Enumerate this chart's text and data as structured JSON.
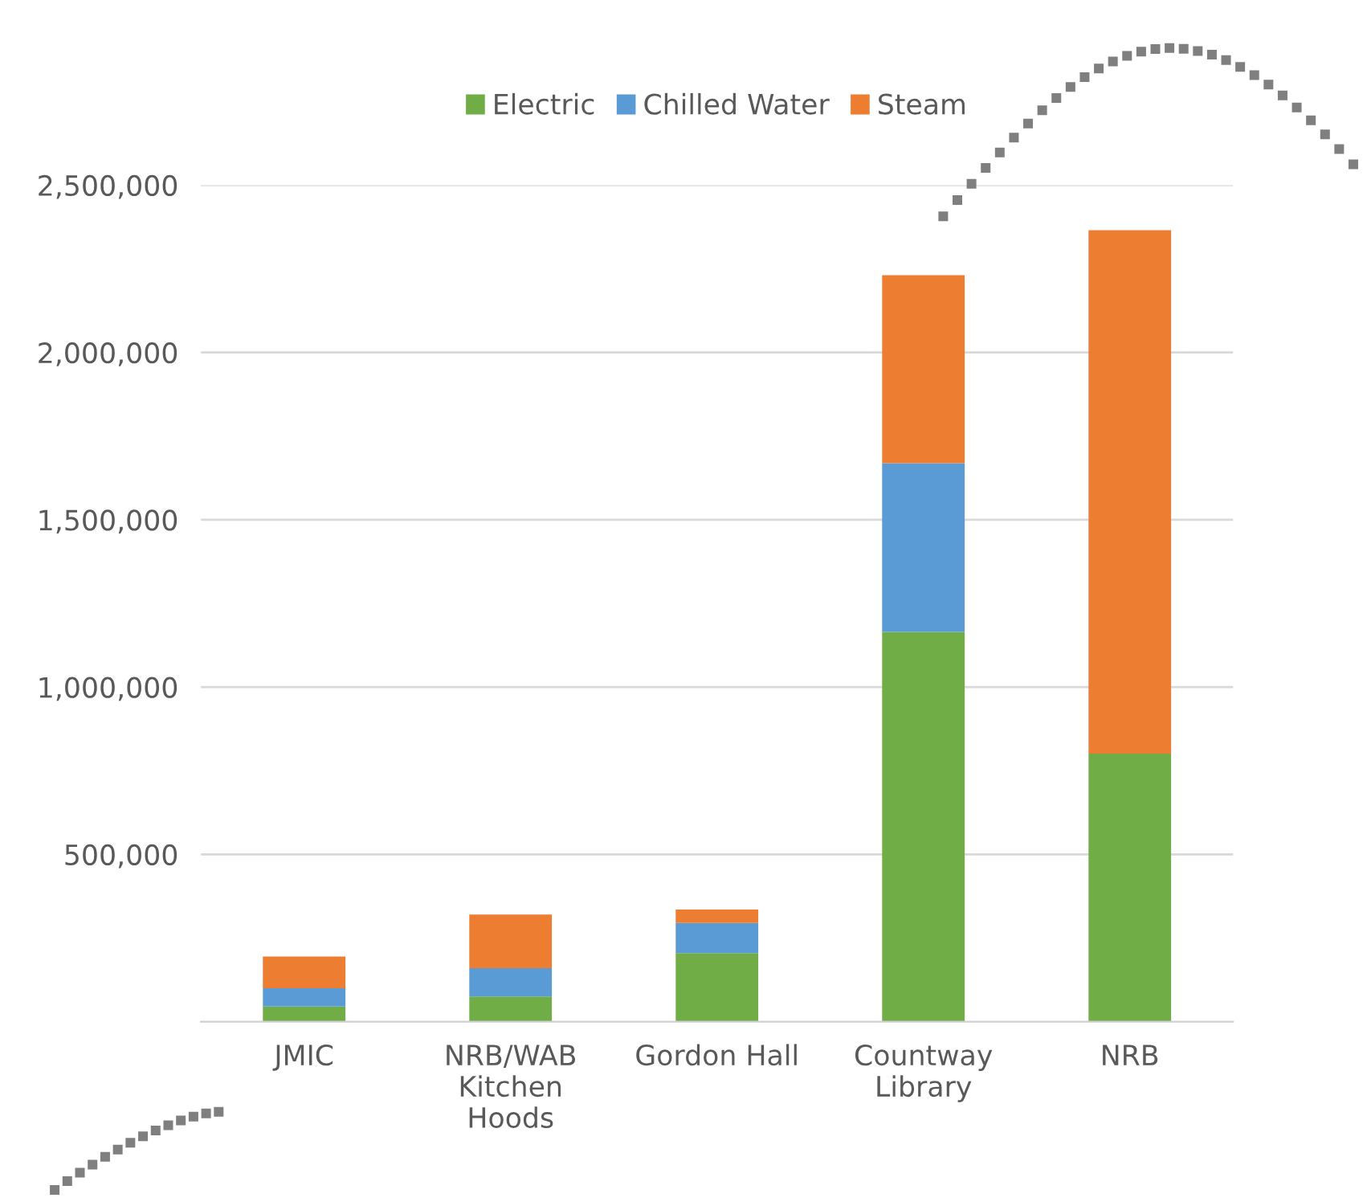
{
  "chart_data": {
    "type": "bar",
    "stacked": true,
    "categories": [
      "JMIC",
      "NRB/WAB\nKitchen\nHoods",
      "Gordon Hall",
      "Countway\nLibrary",
      "NRB"
    ],
    "series": [
      {
        "name": "Electric",
        "color": "#70ad47",
        "values": [
          45000,
          75000,
          205000,
          1165000,
          801000
        ]
      },
      {
        "name": "Chilled Water",
        "color": "#5b9bd5",
        "values": [
          55000,
          85000,
          90000,
          504000,
          0
        ]
      },
      {
        "name": "Steam",
        "color": "#ed7d31",
        "values": [
          95000,
          160000,
          40000,
          562000,
          1564000
        ]
      }
    ],
    "ylim": [
      0,
      2500000
    ],
    "yticks": [
      {
        "value": 500000,
        "label": "500,000"
      },
      {
        "value": 1000000,
        "label": "1,000,000"
      },
      {
        "value": 1500000,
        "label": "1,500,000"
      },
      {
        "value": 2000000,
        "label": "2,000,000"
      },
      {
        "value": 2500000,
        "label": "2,500,000"
      }
    ],
    "grid": "y",
    "legend": "top"
  }
}
